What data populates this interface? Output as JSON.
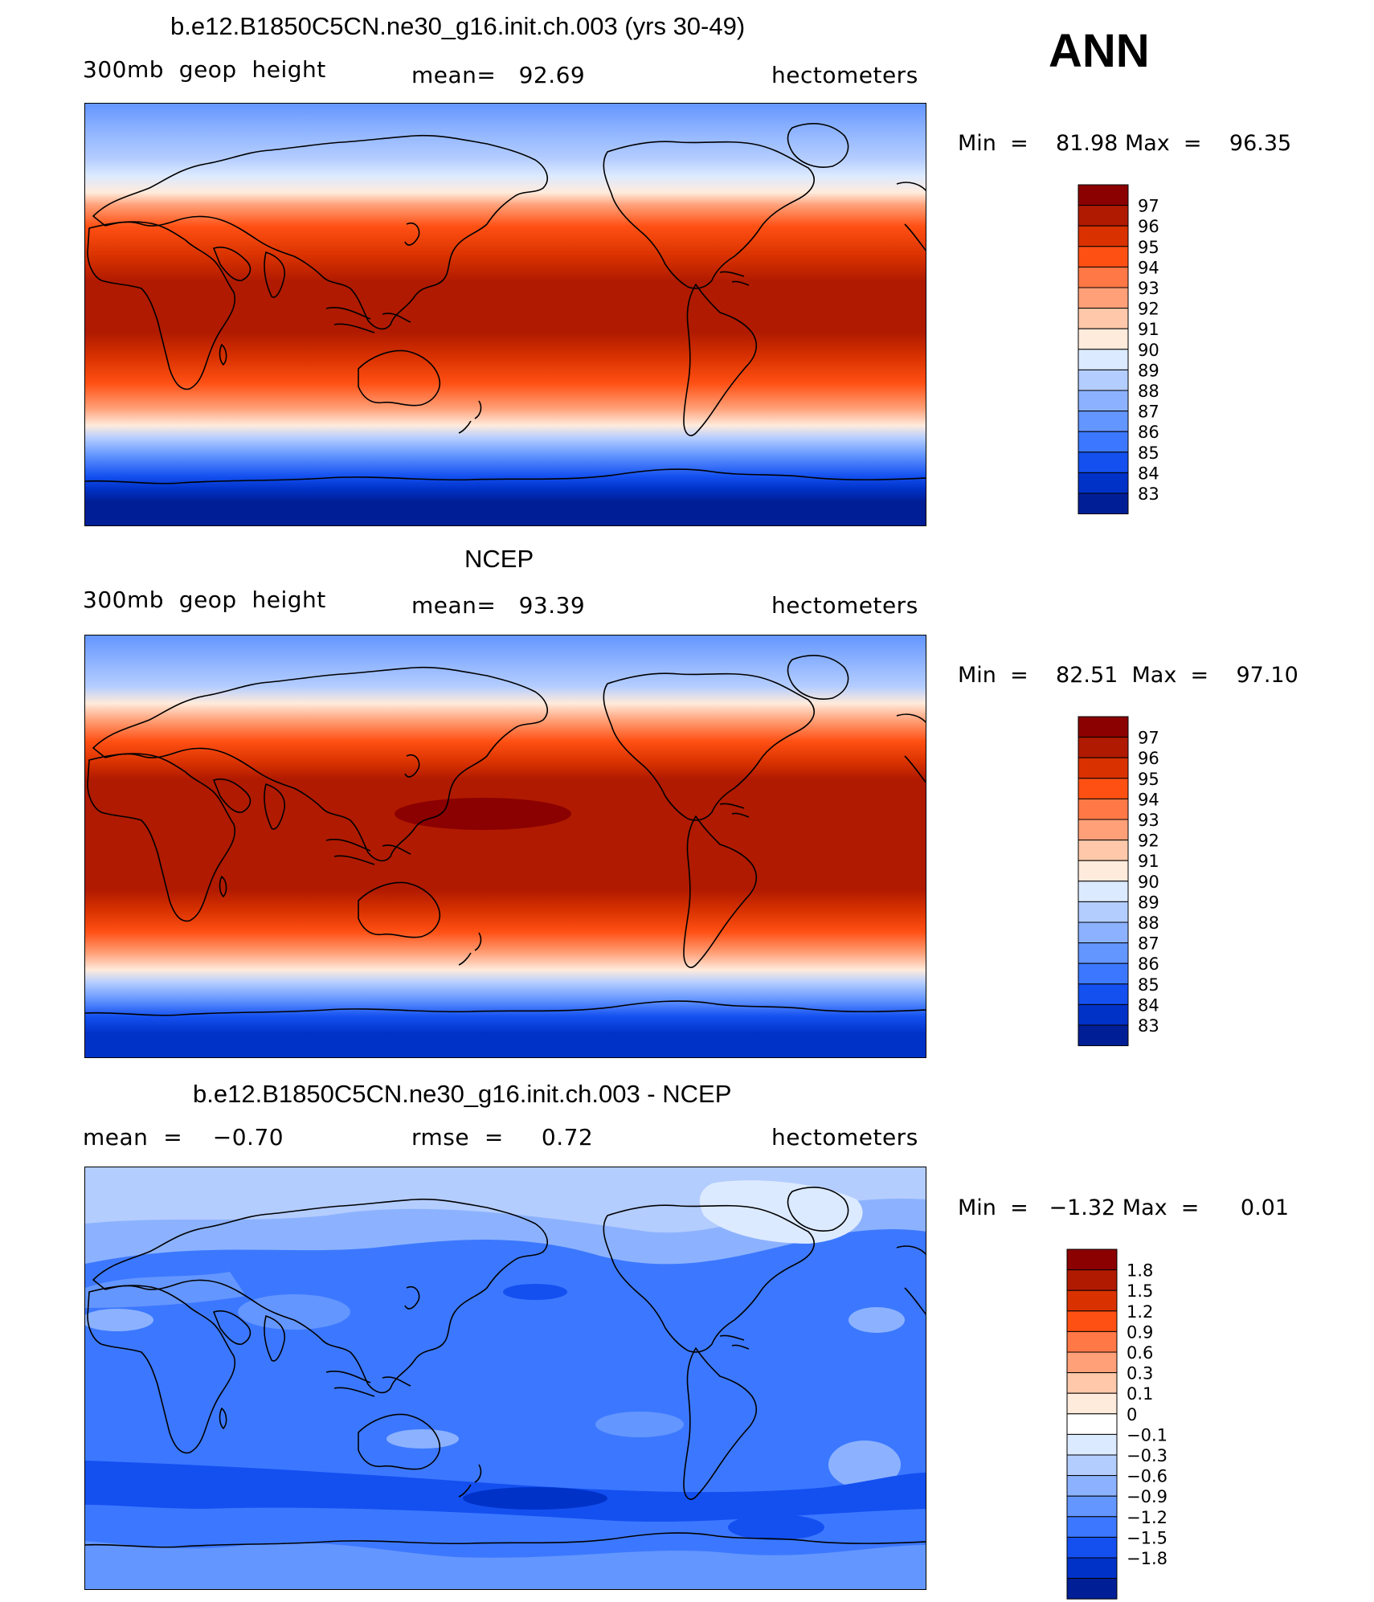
{
  "season": "ANN",
  "panels": [
    {
      "title": "b.e12.B1850C5CN.ne30_g16.init.ch.003 (yrs 30-49)",
      "left_label": "300mb  geop  height",
      "center_label": "mean=   92.69",
      "units": "hectometers",
      "min_label": "Min  =",
      "min_value": "81.98",
      "max_label": "Max  =",
      "max_value": "96.35",
      "legend_levels": [
        "97",
        "96",
        "95",
        "94",
        "93",
        "92",
        "91",
        "90",
        "89",
        "88",
        "87",
        "86",
        "85",
        "84",
        "83"
      ]
    },
    {
      "title": "NCEP",
      "left_label": "300mb  geop  height",
      "center_label": "mean=   93.39",
      "units": "hectometers",
      "min_label": "Min  =",
      "min_value": "82.51",
      "max_label": "Max  =",
      "max_value": "97.10",
      "legend_levels": [
        "97",
        "96",
        "95",
        "94",
        "93",
        "92",
        "91",
        "90",
        "89",
        "88",
        "87",
        "86",
        "85",
        "84",
        "83"
      ]
    },
    {
      "title": "b.e12.B1850C5CN.ne30_g16.init.ch.003 - NCEP",
      "left_label": "mean  =    −0.70",
      "center_label": "rmse  =     0.72",
      "units": "hectometers",
      "min_label": "Min  =",
      "min_value": "−1.32",
      "max_label": "Max  =",
      "max_value": "0.01",
      "legend_levels": [
        "1.8",
        "1.5",
        "1.2",
        "0.9",
        "0.6",
        "0.3",
        "0.1",
        "0",
        "−0.1",
        "−0.3",
        "−0.6",
        "−0.9",
        "−1.2",
        "−1.5",
        "−1.8"
      ]
    }
  ],
  "colors": {
    "ramp_16": [
      "#8b0000",
      "#b01a00",
      "#d93200",
      "#ff5014",
      "#ff7846",
      "#ffa078",
      "#ffc8aa",
      "#ffebdc",
      "#dceaff",
      "#b4cdff",
      "#8cb2ff",
      "#6496ff",
      "#3c78ff",
      "#1450f0",
      "#0032c8",
      "#001e96"
    ],
    "ramp_17": [
      "#8b0000",
      "#b01a00",
      "#d93200",
      "#ff5014",
      "#ff7846",
      "#ffa078",
      "#ffc8aa",
      "#ffebdc",
      "#ffffff",
      "#dceaff",
      "#b4cdff",
      "#8cb2ff",
      "#6496ff",
      "#3c78ff",
      "#1450f0",
      "#0032c8",
      "#001e96"
    ],
    "coast": "#000000"
  }
}
